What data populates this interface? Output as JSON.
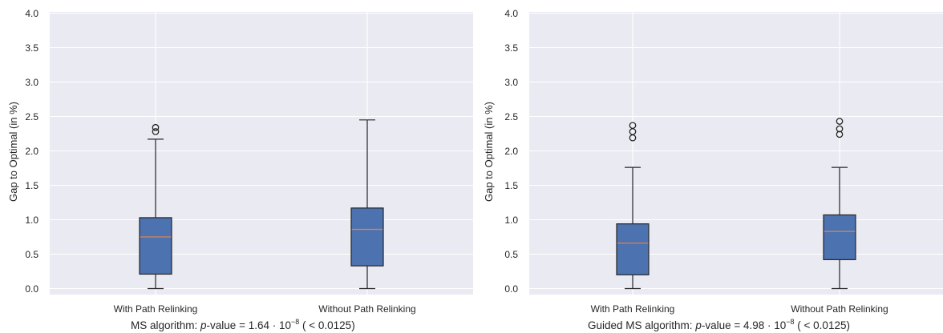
{
  "chart_data": [
    {
      "type": "box",
      "ylabel": "Gap to Optimal (in %)",
      "ylim": [
        0.0,
        4.0
      ],
      "yticks": [
        "0.0",
        "0.5",
        "1.0",
        "1.5",
        "2.0",
        "2.5",
        "3.0",
        "3.5",
        "4.0"
      ],
      "categories": [
        "With Path Relinking",
        "Without Path Relinking"
      ],
      "boxes": [
        {
          "whislo": 0.0,
          "q1": 0.21,
          "med": 0.75,
          "q3": 1.03,
          "whishi": 2.17,
          "fliers": [
            2.28,
            2.34
          ]
        },
        {
          "whislo": 0.0,
          "q1": 0.33,
          "med": 0.86,
          "q3": 1.17,
          "whishi": 2.45,
          "fliers": []
        }
      ],
      "caption": {
        "prefix": "MS algorithm: ",
        "p_label": "p",
        "middle": "-value  = 1.64 · 10",
        "exponent": "−8",
        "suffix": " ( < 0.0125)"
      },
      "grid": true,
      "colors": {
        "box": "#4c72b0",
        "median": "#dd8452",
        "background": "#eaeaf2",
        "grid": "#ffffff",
        "line": "#262626"
      }
    },
    {
      "type": "box",
      "ylabel": "Gap to Optimal (in %)",
      "ylim": [
        0.0,
        4.0
      ],
      "yticks": [
        "0.0",
        "0.5",
        "1.0",
        "1.5",
        "2.0",
        "2.5",
        "3.0",
        "3.5",
        "4.0"
      ],
      "categories": [
        "With Path Relinking",
        "Without Path Relinking"
      ],
      "boxes": [
        {
          "whislo": 0.0,
          "q1": 0.2,
          "med": 0.66,
          "q3": 0.94,
          "whishi": 1.76,
          "fliers": [
            2.19,
            2.28,
            2.37
          ]
        },
        {
          "whislo": 0.0,
          "q1": 0.42,
          "med": 0.83,
          "q3": 1.07,
          "whishi": 1.76,
          "fliers": [
            2.24,
            2.32,
            2.43
          ]
        }
      ],
      "caption": {
        "prefix": "Guided MS algorithm: ",
        "p_label": "p",
        "middle": "-value  = 4.98 · 10",
        "exponent": "−8",
        "suffix": " ( < 0.0125)"
      },
      "grid": true,
      "colors": {
        "box": "#4c72b0",
        "median": "#dd8452",
        "background": "#eaeaf2",
        "grid": "#ffffff",
        "line": "#262626"
      }
    }
  ]
}
